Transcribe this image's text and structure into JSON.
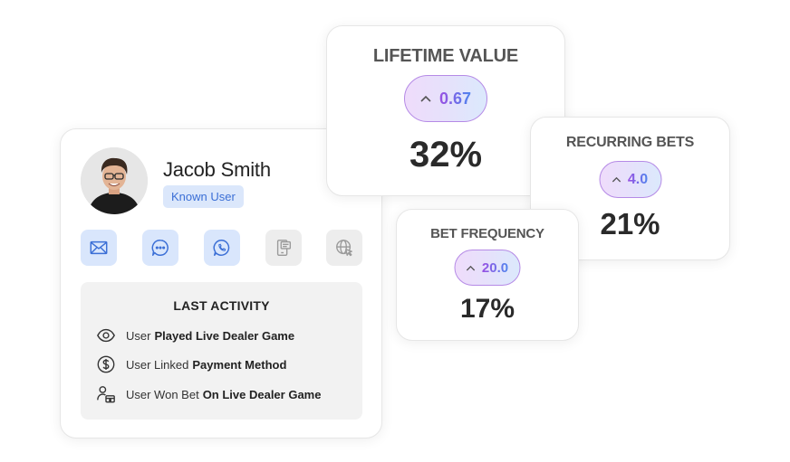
{
  "profile": {
    "name": "Jacob Smith",
    "badge": "Known User",
    "channels": [
      {
        "icon": "mail-icon",
        "active": true
      },
      {
        "icon": "chat-bubble-icon",
        "active": true
      },
      {
        "icon": "whatsapp-icon",
        "active": true
      },
      {
        "icon": "sms-device-icon",
        "active": false
      },
      {
        "icon": "web-globe-icon",
        "active": false
      }
    ],
    "last_activity": {
      "title": "LAST ACTIVITY",
      "items": [
        {
          "icon": "eye-icon",
          "prefix": "User",
          "bold": "Played Live Dealer Game"
        },
        {
          "icon": "dollar-icon",
          "prefix": "User Linked",
          "bold": "Payment Method"
        },
        {
          "icon": "user-bet-icon",
          "prefix": "User Won Bet",
          "bold": "On Live Dealer Game"
        }
      ]
    }
  },
  "metrics": {
    "lifetime_value": {
      "title": "LIFETIME VALUE",
      "change": "0.67",
      "value": "32%"
    },
    "recurring_bets": {
      "title": "RECURRING BETS",
      "change": "4.0",
      "value": "21%"
    },
    "bet_frequency": {
      "title": "BET FREQUENCY",
      "change": "20.0",
      "value": "17%"
    }
  },
  "colors": {
    "accent_blue": "#3b6fd6",
    "badge_bg": "#dbe7fb",
    "pill_border": "#b58ae6",
    "pill_text_start": "#9a4fe2",
    "pill_text_end": "#4f85ee"
  }
}
